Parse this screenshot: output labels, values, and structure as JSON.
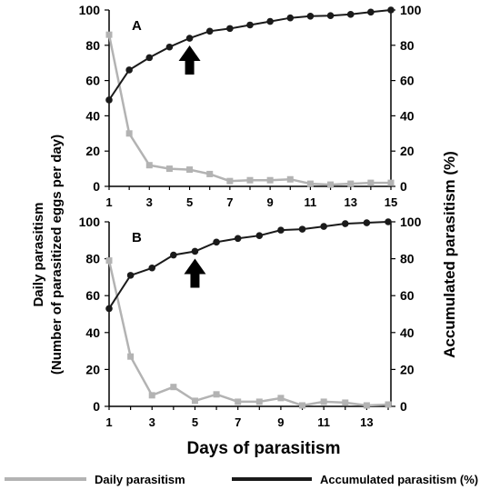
{
  "figure": {
    "left_axis_label_line1": "Daily parasitism",
    "left_axis_label_line2": "(Number of parasitized eggs per day)",
    "right_axis_label": "Accumulated parasitism (%)",
    "x_axis_label": "Days of parasitism",
    "legend": {
      "daily": "Daily parasitism",
      "accumulated": "Accumulated parasitism (%)"
    },
    "colors": {
      "daily": "#b3b3b3",
      "accumulated": "#1a1a1a"
    }
  },
  "chart_data": [
    {
      "type": "line",
      "panel_label": "A",
      "x": [
        1,
        2,
        3,
        4,
        5,
        6,
        7,
        8,
        9,
        10,
        11,
        12,
        13,
        14,
        15
      ],
      "xlim": [
        1,
        15
      ],
      "xticks": [
        1,
        3,
        5,
        7,
        9,
        11,
        13,
        15
      ],
      "ylim_left": [
        0,
        100
      ],
      "ylim_right": [
        0,
        100
      ],
      "yticks": [
        0,
        20,
        40,
        60,
        80,
        100
      ],
      "arrow_day": 5,
      "series": [
        {
          "name": "Daily parasitism",
          "axis": "left",
          "values": [
            86,
            30,
            12,
            10,
            9.5,
            7,
            3,
            3.5,
            3.5,
            4,
            1.5,
            1,
            1.5,
            2,
            2
          ]
        },
        {
          "name": "Accumulated parasitism (%)",
          "axis": "right",
          "values": [
            49,
            66,
            73,
            79,
            84,
            88,
            89.5,
            91.5,
            93.5,
            95.5,
            96.5,
            96.8,
            97.5,
            98.8,
            100
          ]
        }
      ]
    },
    {
      "type": "line",
      "panel_label": "B",
      "x": [
        1,
        2,
        3,
        4,
        5,
        6,
        7,
        8,
        9,
        10,
        11,
        12,
        13,
        14
      ],
      "xlim": [
        1,
        14
      ],
      "xticks": [
        1,
        3,
        5,
        7,
        9,
        11,
        13
      ],
      "ylim_left": [
        0,
        100
      ],
      "ylim_right": [
        0,
        100
      ],
      "yticks": [
        0,
        20,
        40,
        60,
        80,
        100
      ],
      "arrow_day": 5,
      "series": [
        {
          "name": "Daily parasitism",
          "axis": "left",
          "values": [
            79,
            27,
            6,
            10.5,
            3,
            6.5,
            2.5,
            2.5,
            4.5,
            0.5,
            2.5,
            2,
            0.5,
            1
          ]
        },
        {
          "name": "Accumulated parasitism (%)",
          "axis": "right",
          "values": [
            53,
            71,
            75,
            82,
            84,
            89,
            91,
            92.5,
            95.5,
            96,
            97.5,
            99,
            99.5,
            100
          ]
        }
      ]
    }
  ]
}
